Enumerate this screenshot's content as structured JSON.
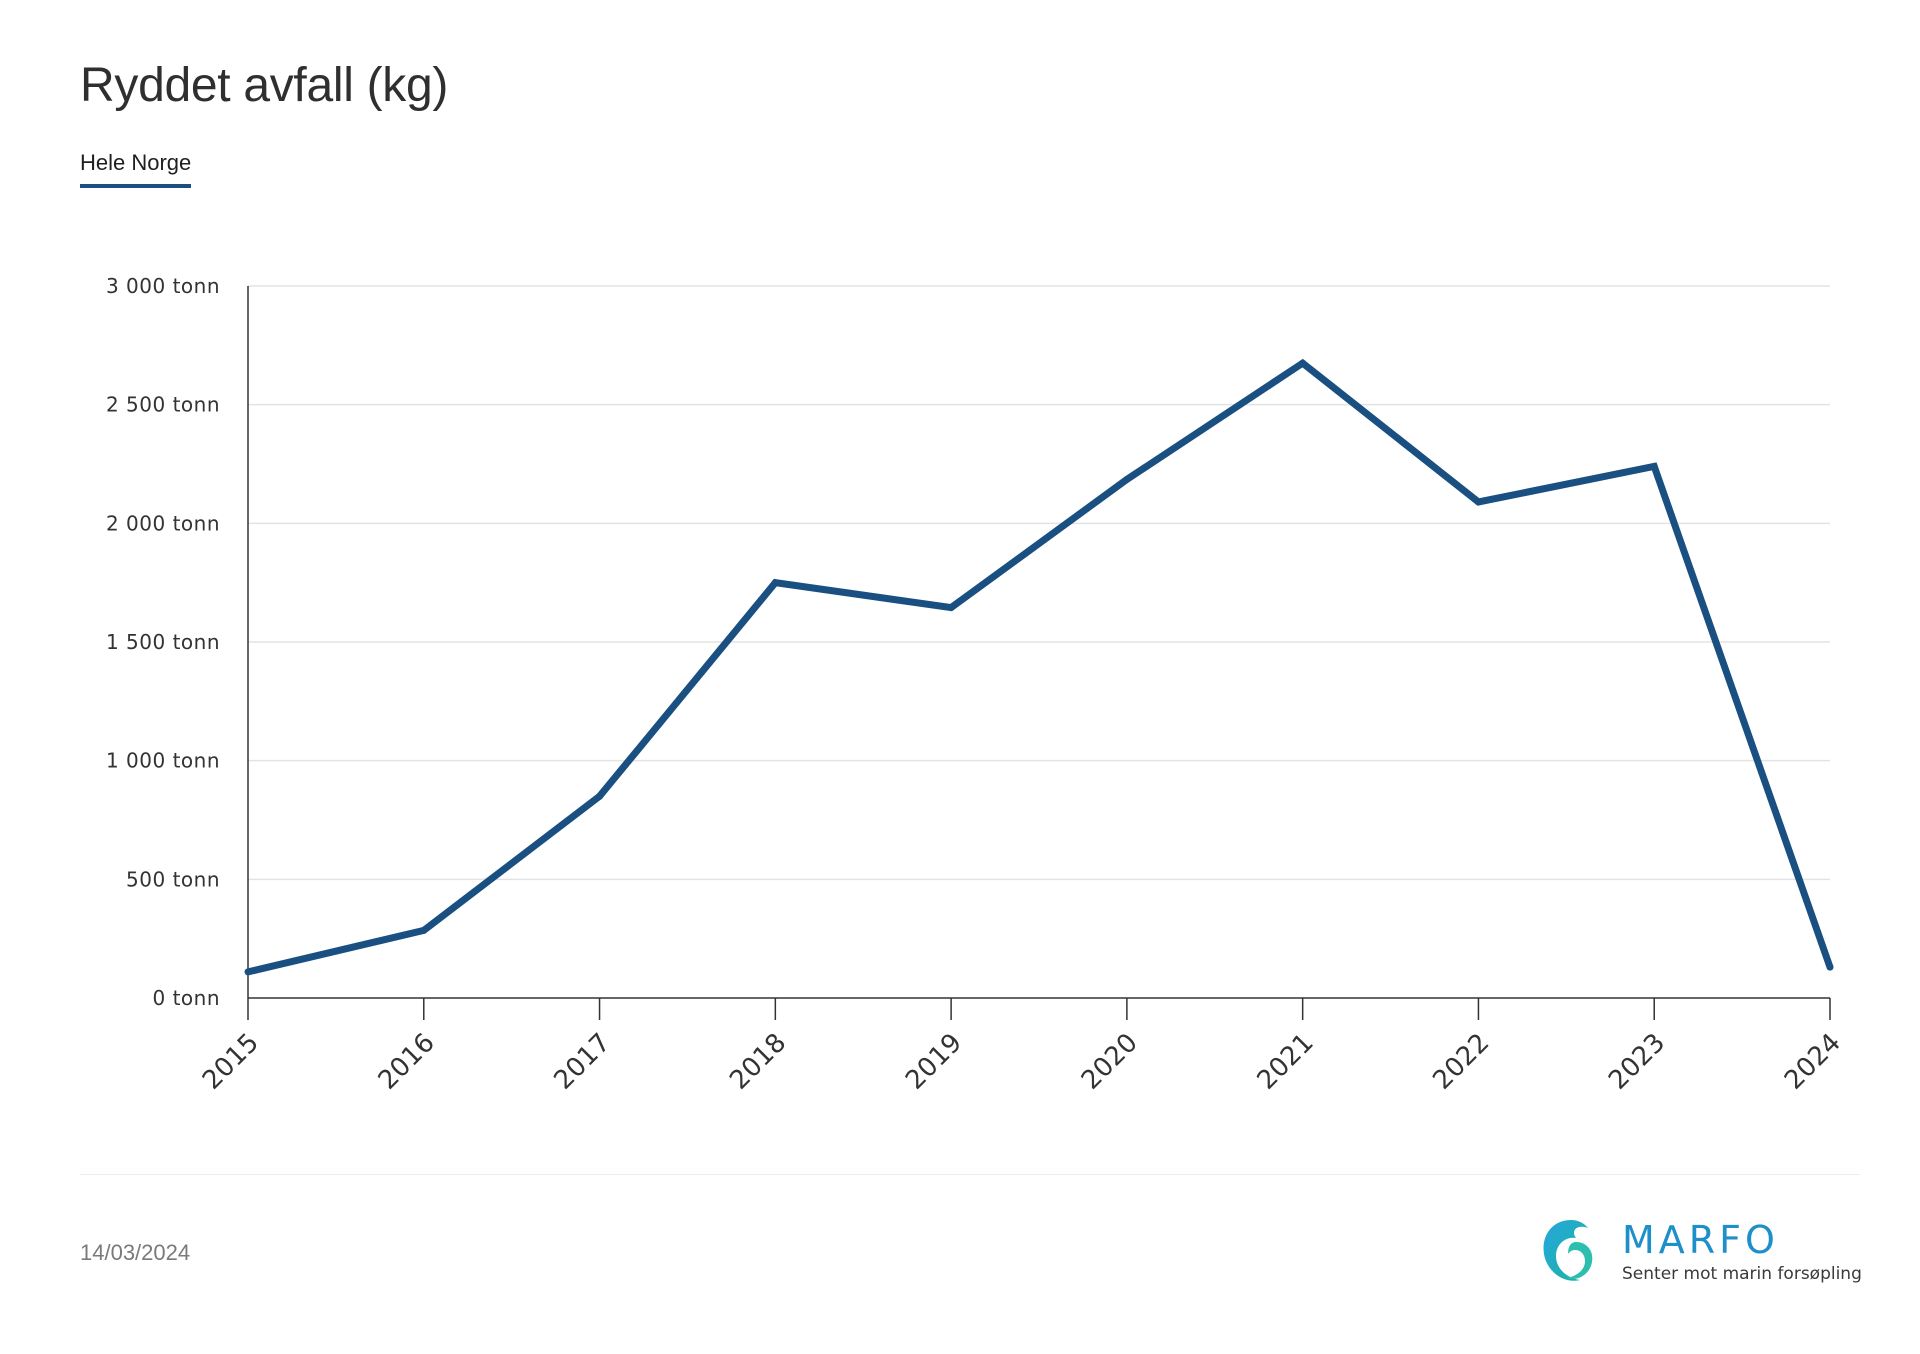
{
  "header": {
    "title": "Ryddet avfall (kg)",
    "tab_label": "Hele Norge"
  },
  "footer": {
    "date": "14/03/2024"
  },
  "logo": {
    "name": "MARFO",
    "tagline": "Senter mot marin forsøpling"
  },
  "colors": {
    "line": "#1a4f82",
    "grid": "#e3e3e3",
    "axis": "#333333",
    "tab_underline": "#1a4f82"
  },
  "chart_data": {
    "type": "line",
    "title": "Ryddet avfall (kg)",
    "categories": [
      "2015",
      "2016",
      "2017",
      "2018",
      "2019",
      "2020",
      "2021",
      "2022",
      "2023",
      "2024"
    ],
    "series": [
      {
        "values": [
          110,
          285,
          850,
          1750,
          1645,
          2185,
          2675,
          2090,
          2240,
          130
        ]
      }
    ],
    "y_ticks": [
      0,
      500,
      1000,
      1500,
      2000,
      2500,
      3000
    ],
    "y_tick_labels": [
      "0 tonn",
      "500 tonn",
      "1 000 tonn",
      "1 500 tonn",
      "2 000 tonn",
      "2 500 tonn",
      "3 000 tonn"
    ],
    "ylim": [
      0,
      3000
    ],
    "grid": true,
    "legend": "none"
  }
}
